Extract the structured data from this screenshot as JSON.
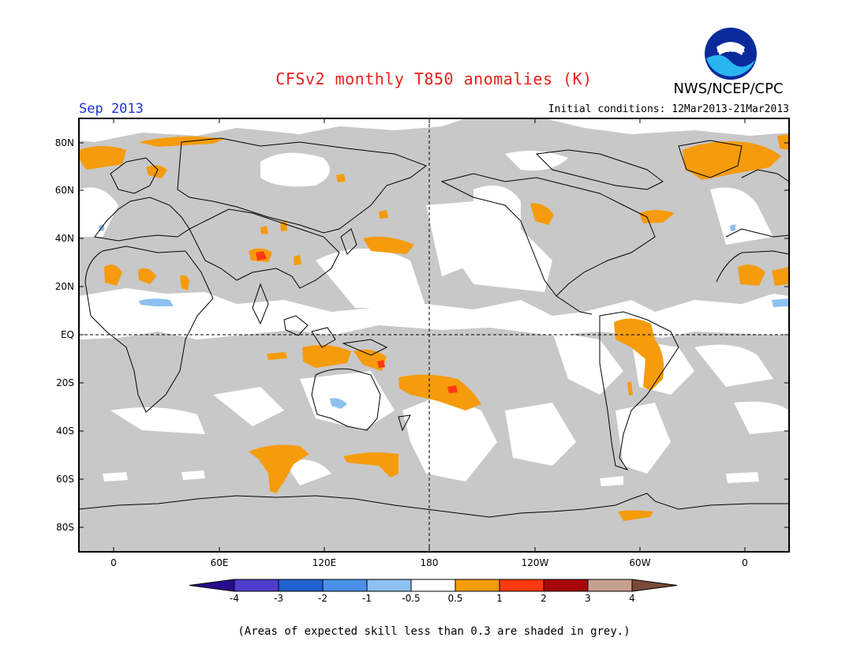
{
  "title": "CFSv2 monthly T850 anomalies (K)",
  "organization": "NWS/NCEP/CPC",
  "logo_text": "NOAA",
  "valid_month": "Sep 2013",
  "initial_conditions": "Initial conditions: 12Mar2013-21Mar2013",
  "footnote": "(Areas of expected skill less than 0.3 are shaded in grey.)",
  "lat_labels": [
    "80N",
    "60N",
    "40N",
    "20N",
    "EQ",
    "20S",
    "40S",
    "60S",
    "80S"
  ],
  "lon_labels": [
    "0",
    "60E",
    "120E",
    "180",
    "120W",
    "60W",
    "0"
  ],
  "colorbar": {
    "labels": [
      "-4",
      "-3",
      "-2",
      "-1",
      "-0.5",
      "0.5",
      "1",
      "2",
      "3",
      "4"
    ],
    "colors": [
      "#2a0a8c",
      "#4e3ccc",
      "#2060d0",
      "#4a90e8",
      "#8ec0f0",
      "#ffffff",
      "#f59b0c",
      "#ff3a10",
      "#a80808",
      "#c8a090",
      "#7a4a38"
    ]
  },
  "colors": {
    "grey_low_skill": "#c8c8c8",
    "anomaly_pos_05_1": "#f59b0c",
    "anomaly_pos_1_2": "#ff3a10",
    "anomaly_neg_05_1": "#8ec0f0",
    "title_red": "#e8201a",
    "month_blue": "#2030e0"
  }
}
